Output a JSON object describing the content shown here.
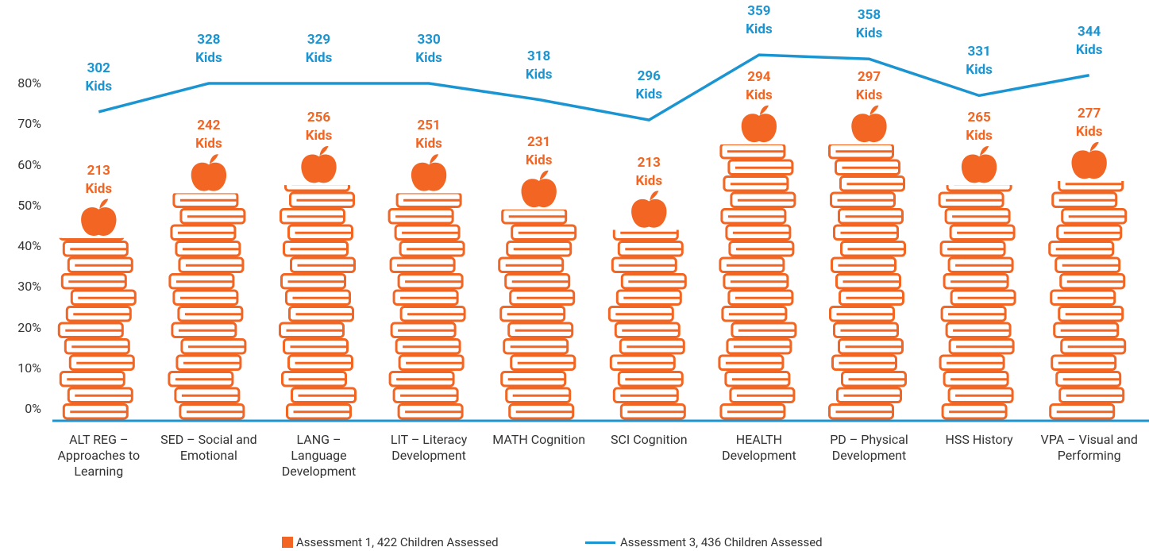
{
  "chart_data": {
    "type": "bar_line",
    "categories": [
      "ALT REG – Approaches to Learning",
      "SED – Social and Emotional",
      "LANG – Language Development",
      "LIT – Literacy Development",
      "MATH Cognition",
      "SCI Cognition",
      "HEALTH Development",
      "PD – Physical Development",
      "HSS History",
      "VPA – Visual and Performing"
    ],
    "series": [
      {
        "name": "Assessment 1, 422 Children Assessed",
        "color": "#f26522",
        "kind": "bar",
        "values": [
          42,
          53,
          55,
          53,
          49,
          44,
          65,
          65,
          55,
          56
        ],
        "value_labels": [
          "213 Kids",
          "242 Kids",
          "256 Kids",
          "251 Kids",
          "231 Kids",
          "213 Kids",
          "294 Kids",
          "297 Kids",
          "265 Kids",
          "277 Kids"
        ]
      },
      {
        "name": "Assessment 3, 436 Children Assessed",
        "color": "#1b95d2",
        "kind": "line",
        "values": [
          73,
          80,
          80,
          80,
          76,
          71,
          87,
          86,
          77,
          82
        ],
        "value_labels": [
          "302 Kids",
          "328 Kids",
          "329 Kids",
          "330 Kids",
          "318 Kids",
          "296 Kids",
          "359 Kids",
          "358 Kids",
          "331 Kids",
          "344 Kids"
        ]
      }
    ],
    "ylim": [
      0,
      80
    ],
    "yticks": [
      {
        "value": 0,
        "label": "0%"
      },
      {
        "value": 10,
        "label": "10%"
      },
      {
        "value": 20,
        "label": "20%"
      },
      {
        "value": 30,
        "label": "30%"
      },
      {
        "value": 40,
        "label": "40%"
      },
      {
        "value": 50,
        "label": "50%"
      },
      {
        "value": 60,
        "label": "60%"
      },
      {
        "value": 70,
        "label": "70%"
      },
      {
        "value": 80,
        "label": "80%"
      }
    ],
    "grid": false
  }
}
